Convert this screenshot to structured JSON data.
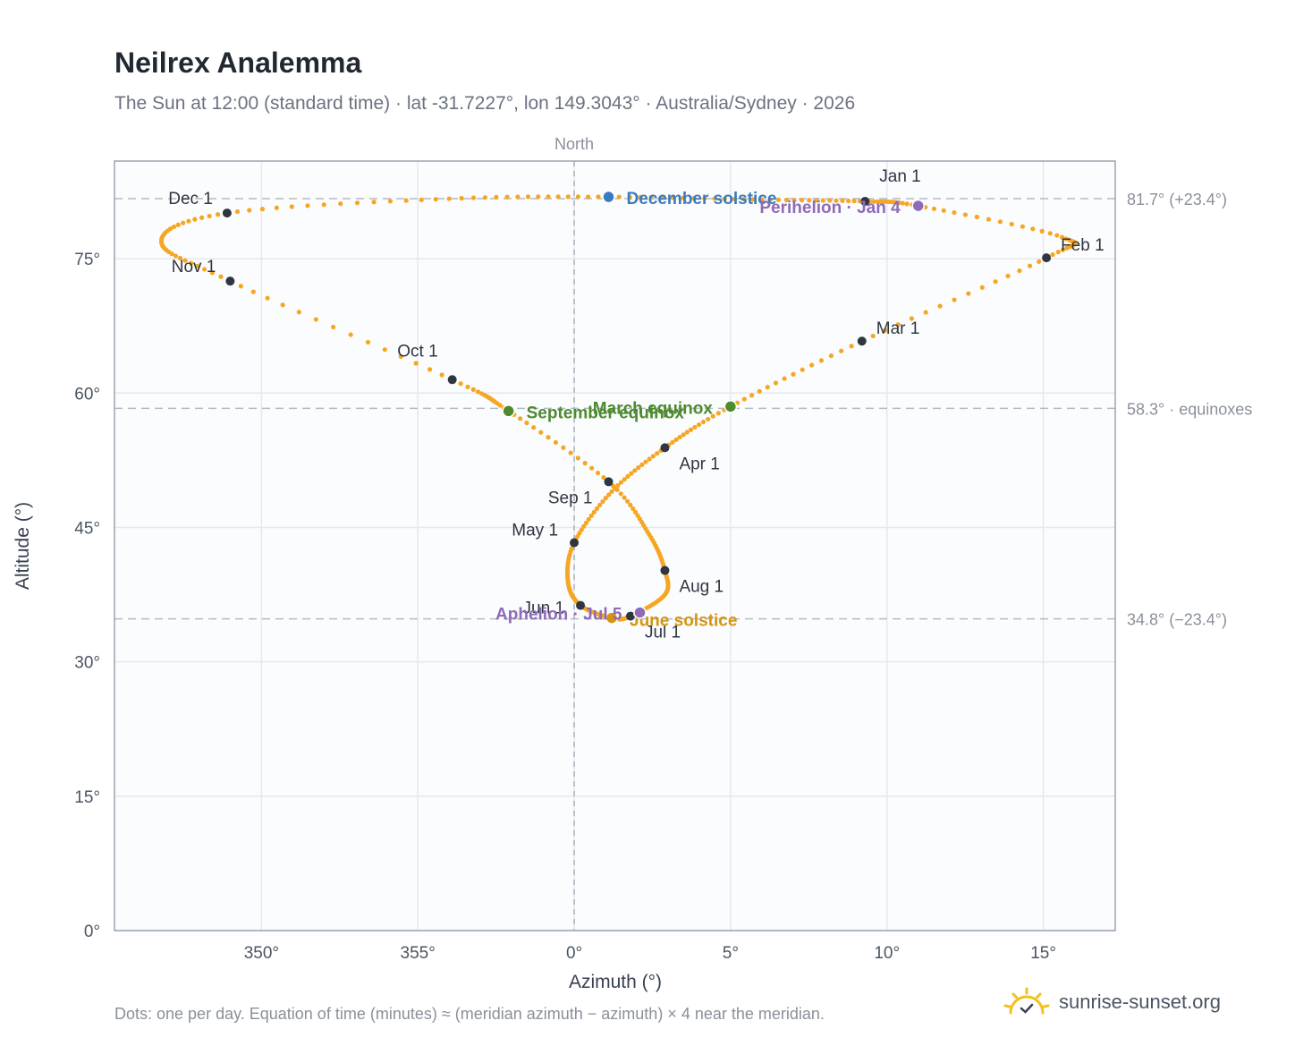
{
  "header": {
    "title": "Neilrex Analemma",
    "subtitle": "The Sun at 12:00 (standard time) · lat -31.7227°, lon 149.3043° · Australia/Sydney · 2026"
  },
  "footer": {
    "note": "Dots: one per day. Equation of time (minutes) ≈ (meridian azimuth − azimuth) × 4 near the meridian.",
    "brand": "sunrise-sunset.org",
    "brand_icon": "sun-logo-icon"
  },
  "chart_data": {
    "type": "scatter",
    "xlabel": "Azimuth (°)",
    "ylabel": "Altitude (°)",
    "x_center_label": "North",
    "xlim": [
      345.3,
      17.3
    ],
    "ylim": [
      0,
      85.9
    ],
    "xticks": [
      350,
      355,
      0,
      5,
      10,
      15
    ],
    "xtick_labels": [
      "350°",
      "355°",
      "0°",
      "5°",
      "10°",
      "15°"
    ],
    "yticks": [
      0,
      15,
      30,
      45,
      60,
      75
    ],
    "ytick_labels": [
      "0°",
      "15°",
      "30°",
      "45°",
      "60°",
      "75°"
    ],
    "grid": true,
    "reference_lines": [
      {
        "y": 81.7,
        "label": "81.7° (+23.4°)"
      },
      {
        "y": 58.3,
        "label": "58.3° · equinoxes"
      },
      {
        "y": 34.8,
        "label": "34.8° (−23.4°)"
      }
    ],
    "series": [
      {
        "dot_color": "#f5a623"
      }
    ],
    "month_markers": [
      {
        "label": "Jan 1",
        "az": 9.3,
        "alt": 81.4
      },
      {
        "label": "Feb 1",
        "az": 15.1,
        "alt": 75.1
      },
      {
        "label": "Mar 1",
        "az": 9.2,
        "alt": 65.8
      },
      {
        "label": "Apr 1",
        "az": 2.9,
        "alt": 53.9
      },
      {
        "label": "May 1",
        "az": 0.0,
        "alt": 43.3
      },
      {
        "label": "Jun 1",
        "az": 0.2,
        "alt": 36.3
      },
      {
        "label": "Jul 1",
        "az": 1.8,
        "alt": 35.1
      },
      {
        "label": "Aug 1",
        "az": 2.9,
        "alt": 40.2
      },
      {
        "label": "Sep 1",
        "az": 1.1,
        "alt": 50.1
      },
      {
        "label": "Oct 1",
        "az": 356.1,
        "alt": 61.5
      },
      {
        "label": "Nov 1",
        "az": 349.0,
        "alt": 72.5
      },
      {
        "label": "Dec 1",
        "az": 348.9,
        "alt": 80.1
      }
    ],
    "events": [
      {
        "label": "December solstice",
        "az": 1.1,
        "alt": 81.9,
        "color": "#3a7bbf"
      },
      {
        "label": "Perihelion · Jan 4",
        "az": 11.0,
        "alt": 80.9,
        "color": "#8e6bb8"
      },
      {
        "label": "March equinox",
        "az": 5.0,
        "alt": 58.5,
        "color": "#4e8a2e"
      },
      {
        "label": "September equinox",
        "az": 357.9,
        "alt": 58.0,
        "color": "#4e8a2e"
      },
      {
        "label": "June solstice",
        "az": 1.2,
        "alt": 34.9,
        "color": "#d4950f"
      },
      {
        "label": "Aphelion · Jul 5",
        "az": 2.1,
        "alt": 35.5,
        "color": "#8e6bb8"
      }
    ]
  }
}
